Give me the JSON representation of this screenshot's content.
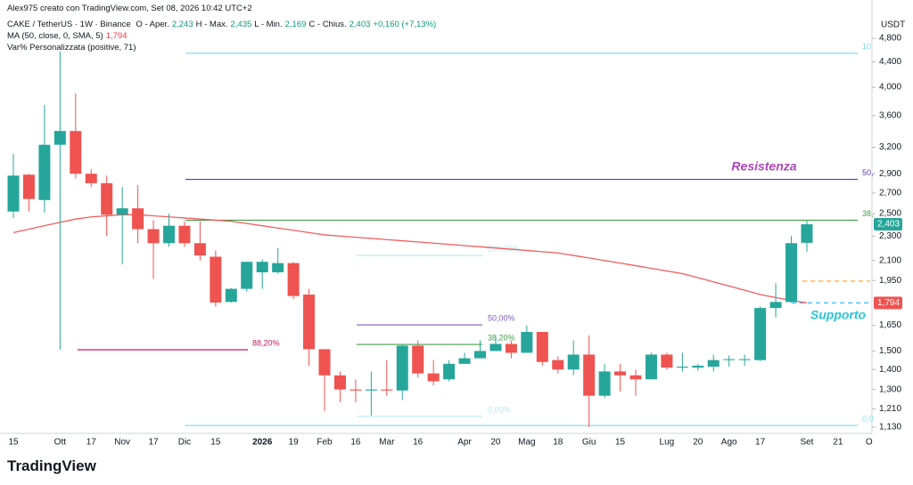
{
  "header": {
    "credit": "Alex975 creato con TradingView.com, Set 08, 2026 10:42 UTC+2",
    "symbol": "CAKE / TetherUS · 1W · Binance",
    "ohlc": [
      {
        "key": "O - Aper.",
        "value": "2,243"
      },
      {
        "key": "H - Max.",
        "value": "2,435"
      },
      {
        "key": "L - Min.",
        "value": "2,169"
      },
      {
        "key": "C - Chius.",
        "value": "2,403"
      }
    ],
    "change": "+0,160 (+7,13%)",
    "indicator": "Var% Personalizzata (positive, 71)"
  },
  "footer": {
    "logo": "TradingView"
  },
  "chart_data": {
    "type": "candlestick",
    "unit": "USDT",
    "log_scale": true,
    "grid": false,
    "up_color": "#26a69a",
    "down_color": "#ef5350",
    "categories": [
      "15",
      null,
      null,
      "Ott",
      null,
      "17",
      null,
      "Nov",
      null,
      "17",
      null,
      "Dic",
      null,
      "15",
      null,
      null,
      "2026",
      null,
      "19",
      null,
      "Feb",
      null,
      "16",
      null,
      "Mar",
      null,
      "16",
      null,
      null,
      "Apr",
      null,
      "20",
      null,
      "Mag",
      null,
      "18",
      null,
      "Giu",
      null,
      "15",
      null,
      null,
      "Lug",
      null,
      "20",
      null,
      "Ago",
      null,
      "17",
      null,
      null,
      "Set",
      null,
      "21",
      null,
      "O"
    ],
    "open": [
      2520,
      2890,
      2630,
      3230,
      3400,
      2900,
      2800,
      2490,
      2550,
      2360,
      2240,
      2390,
      2240,
      2130,
      1800,
      1890,
      2010,
      2010,
      2080,
      1850,
      1510,
      1370,
      1300,
      1295,
      1300,
      1295,
      1530,
      1380,
      1350,
      1430,
      1460,
      1500,
      1540,
      1490,
      1610,
      1450,
      1400,
      1480,
      1270,
      1390,
      1370,
      1350,
      1480,
      1410,
      1410,
      1415,
      1450,
      1450,
      1450,
      1760,
      1800,
      2243,
      null,
      null,
      null,
      null
    ],
    "high": [
      3120,
      2900,
      3745,
      4570,
      3910,
      2950,
      2880,
      2760,
      2780,
      2440,
      2500,
      2430,
      2430,
      2180,
      1895,
      2090,
      2110,
      2200,
      2090,
      1890,
      1510,
      1390,
      1350,
      1390,
      1450,
      1540,
      1560,
      1450,
      1450,
      1490,
      1560,
      1580,
      1560,
      1650,
      1610,
      1470,
      1560,
      1590,
      1430,
      1430,
      1400,
      1490,
      1490,
      1490,
      1430,
      1480,
      1475,
      1480,
      1770,
      1930,
      2300,
      2435,
      null,
      null,
      null,
      null
    ],
    "low": [
      2460,
      2520,
      2510,
      1507,
      2850,
      2760,
      2300,
      2070,
      2240,
      1960,
      2210,
      2210,
      2100,
      1770,
      1795,
      1870,
      1890,
      2000,
      1820,
      1420,
      1200,
      1240,
      1240,
      1180,
      1270,
      1250,
      1360,
      1320,
      1340,
      1430,
      1460,
      1500,
      1460,
      1490,
      1420,
      1380,
      1370,
      1130,
      1260,
      1290,
      1270,
      1350,
      1400,
      1390,
      1395,
      1390,
      1415,
      1420,
      1445,
      1700,
      1795,
      2169,
      null,
      null,
      null,
      null
    ],
    "close": [
      2880,
      2640,
      3230,
      3400,
      2900,
      2800,
      2490,
      2550,
      2360,
      2240,
      2390,
      2240,
      2140,
      1796,
      1890,
      2090,
      2090,
      2080,
      1840,
      1510,
      1370,
      1300,
      1295,
      1300,
      1295,
      1530,
      1380,
      1340,
      1430,
      1460,
      1500,
      1540,
      1490,
      1610,
      1440,
      1400,
      1480,
      1270,
      1390,
      1370,
      1350,
      1480,
      1410,
      1415,
      1420,
      1450,
      1455,
      1455,
      1760,
      1800,
      2240,
      2403,
      null,
      null,
      null,
      null
    ],
    "overlays": [
      {
        "name": "MA (50, close, 0, SMA, 5)",
        "color": "#f05d5e",
        "values": [
          2330,
          2360,
          2390,
          2420,
          2450,
          2470,
          2480,
          2490,
          2490,
          2480,
          2470,
          2460,
          2450,
          2440,
          2430,
          2410,
          2390,
          2370,
          2350,
          2330,
          2310,
          2300,
          2290,
          2280,
          2270,
          2260,
          2250,
          2240,
          2230,
          2220,
          2210,
          2200,
          2190,
          2180,
          2170,
          2160,
          2140,
          2120,
          2100,
          2080,
          2060,
          2040,
          2020,
          2000,
          1970,
          1940,
          1910,
          1880,
          1850,
          1830,
          1810,
          1794,
          null,
          null,
          null,
          null
        ]
      }
    ],
    "levels": [
      {
        "value": 4540,
        "label": "10",
        "color": "#80deea"
      },
      {
        "value": 2840,
        "label": "50,",
        "color": "#5e35b1"
      },
      {
        "value": 2440,
        "label": "38,",
        "color": "#43a047"
      },
      {
        "value": 1137,
        "label": "0,0",
        "color": "#80deea"
      },
      {
        "value": 2140,
        "label": "100,00%",
        "color": "#b2ebf2"
      },
      {
        "value": 1653,
        "label": "50,00%",
        "color": "#7e57c2"
      },
      {
        "value": 1537,
        "label": "38,20%",
        "color": "#43a047"
      },
      {
        "value": 1176,
        "label": "0,00%",
        "color": "#b2ebf2"
      },
      {
        "value": 1507,
        "label": "88,20%",
        "color": "#c2185b"
      },
      {
        "value": 1945,
        "color": "#ffb74d",
        "dashed": true
      },
      {
        "value": 1794,
        "color": "#4fc3f7",
        "dashed": true
      }
    ],
    "annotations": [
      {
        "text": "Resistenza",
        "color": "#ab47bc"
      },
      {
        "text": "Supporto",
        "color": "#26c6da"
      }
    ],
    "price_labels": [
      {
        "value": 2403,
        "label": "2,403",
        "color": "#26a69a"
      },
      {
        "value": 1794,
        "label": "1,794",
        "color": "#ef5350"
      }
    ],
    "ylim": [
      1104,
      5180
    ],
    "yticks": [
      {
        "value": 1130,
        "label": "1,130"
      },
      {
        "value": 1210,
        "label": "1,210"
      },
      {
        "value": 1300,
        "label": "1,300"
      },
      {
        "value": 1400,
        "label": "1,400"
      },
      {
        "value": 1500,
        "label": "1,500"
      },
      {
        "value": 1650,
        "label": "1,650"
      },
      {
        "value": 1950,
        "label": "1,950"
      },
      {
        "value": 2100,
        "label": "2,100"
      },
      {
        "value": 2300,
        "label": "2,300"
      },
      {
        "value": 2500,
        "label": "2,500"
      },
      {
        "value": 2700,
        "label": "2,700"
      },
      {
        "value": 2900,
        "label": "2,900"
      },
      {
        "value": 3200,
        "label": "3,200"
      },
      {
        "value": 3600,
        "label": "3,600"
      },
      {
        "value": 4000,
        "label": "4,000"
      },
      {
        "value": 4400,
        "label": "4,400"
      },
      {
        "value": 4800,
        "label": "4,800"
      }
    ]
  }
}
